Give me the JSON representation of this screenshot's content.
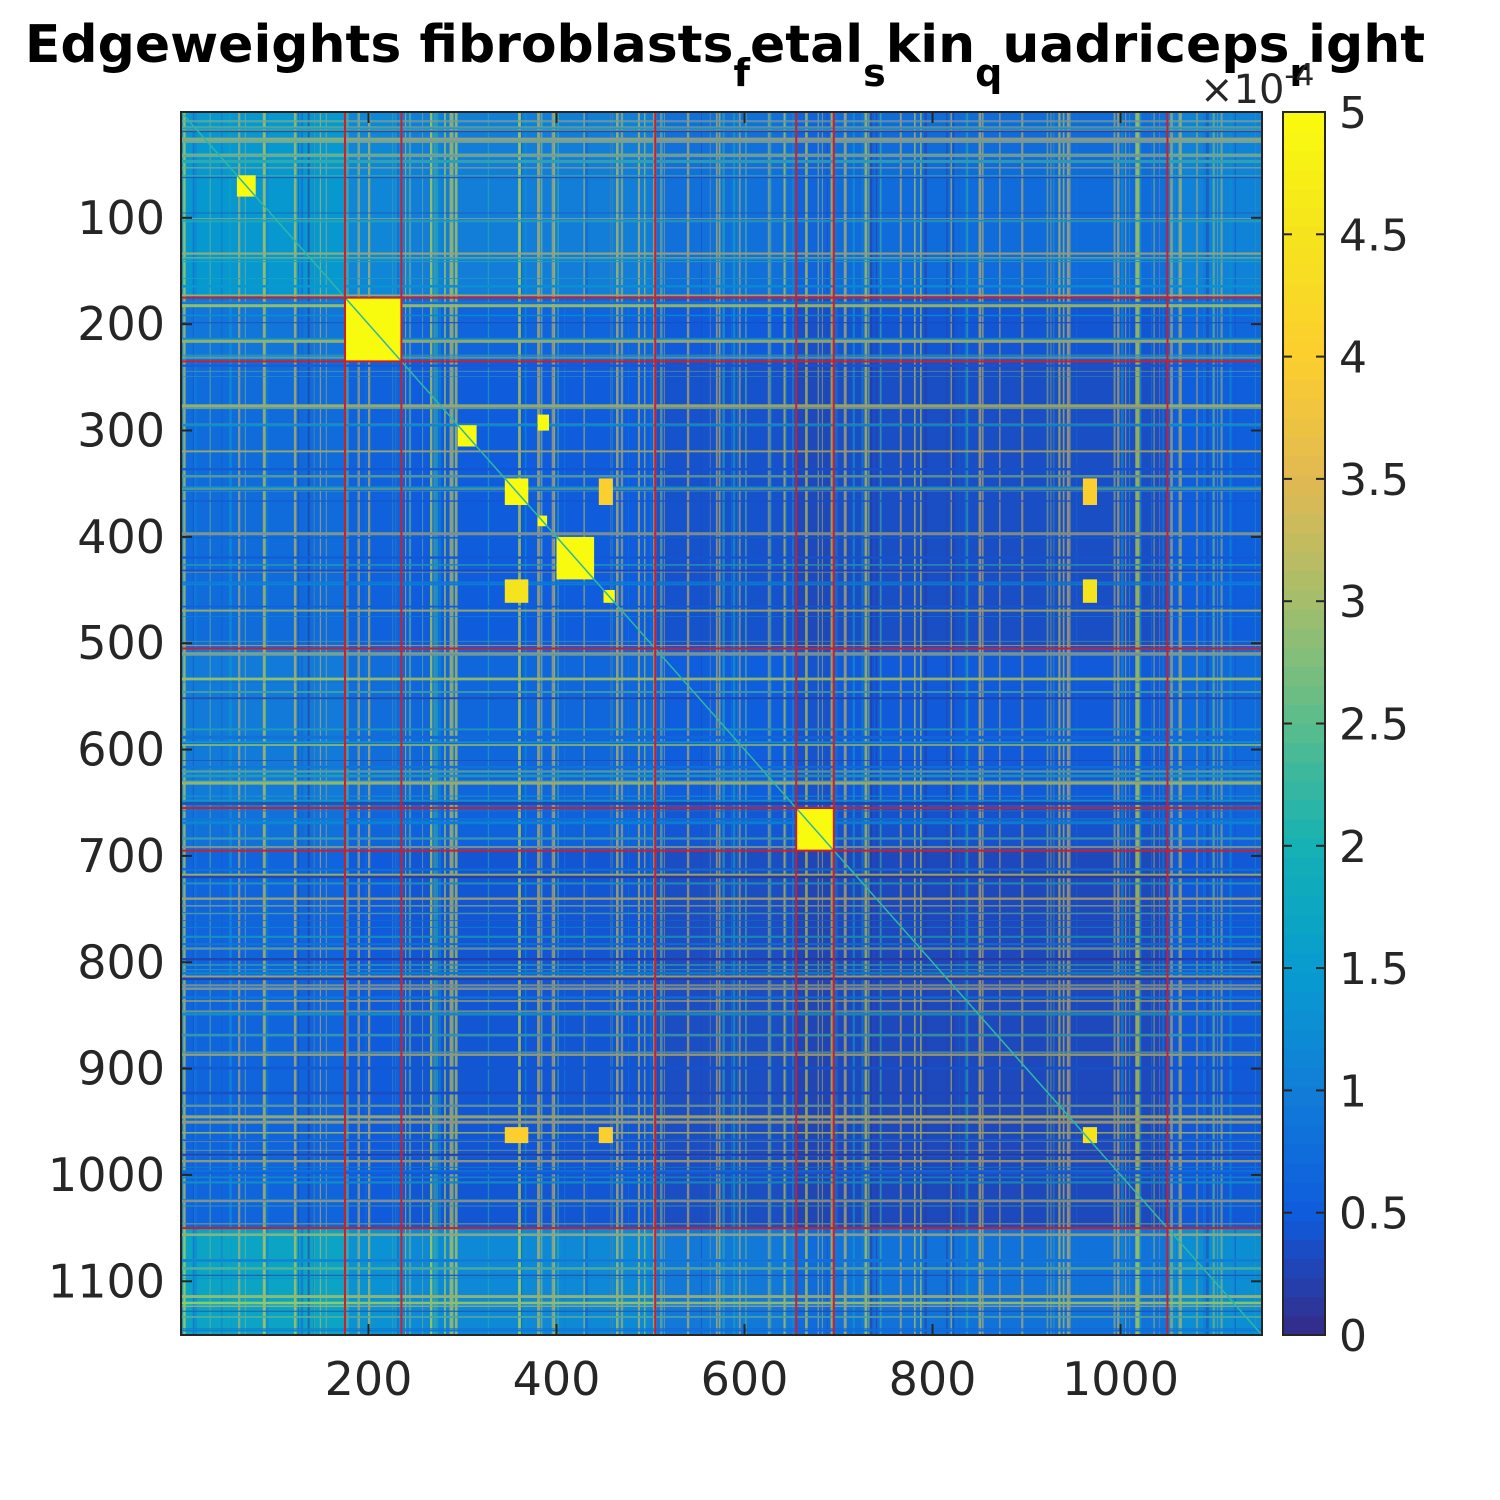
{
  "chart_data": {
    "type": "heatmap",
    "title_parts": [
      {
        "text": "Edgeweights fibroblasts",
        "sub": false
      },
      {
        "text": "f",
        "sub": true
      },
      {
        "text": "etal",
        "sub": false
      },
      {
        "text": "s",
        "sub": true
      },
      {
        "text": "kin",
        "sub": false
      },
      {
        "text": "q",
        "sub": true
      },
      {
        "text": "uadriceps",
        "sub": false
      },
      {
        "text": "r",
        "sub": true
      },
      {
        "text": "ight",
        "sub": false
      }
    ],
    "matrix_size": 1150,
    "xlim": [
      1,
      1150
    ],
    "ylim": [
      1,
      1150
    ],
    "x_ticks": [
      200,
      400,
      600,
      800,
      1000
    ],
    "y_ticks": [
      100,
      200,
      300,
      400,
      500,
      600,
      700,
      800,
      900,
      1000,
      1100
    ],
    "x_tick_labels": [
      "200",
      "400",
      "600",
      "800",
      "1000"
    ],
    "y_tick_labels": [
      "100",
      "200",
      "300",
      "400",
      "500",
      "600",
      "700",
      "800",
      "900",
      "1000",
      "1100"
    ],
    "colorbar": {
      "colormap": "parula",
      "range": [
        0,
        5
      ],
      "ticks": [
        0,
        0.5,
        1,
        1.5,
        2,
        2.5,
        3,
        3.5,
        4,
        4.5,
        5
      ],
      "tick_labels": [
        "0",
        "0.5",
        "1",
        "1.5",
        "2",
        "2.5",
        "3",
        "3.5",
        "4",
        "4.5",
        "5"
      ],
      "multiplier_prefix": "×10",
      "multiplier_exponent": "-4"
    },
    "cluster_boundaries": [
      175,
      235,
      505,
      655,
      695,
      1050
    ],
    "diagonal_blocks": [
      {
        "start": 175,
        "end": 235,
        "level": 5
      },
      {
        "start": 60,
        "end": 80,
        "level": 5
      },
      {
        "start": 295,
        "end": 315,
        "level": 5
      },
      {
        "start": 345,
        "end": 370,
        "level": 5
      },
      {
        "start": 380,
        "end": 390,
        "level": 5
      },
      {
        "start": 400,
        "end": 440,
        "level": 5
      },
      {
        "start": 450,
        "end": 462,
        "level": 5
      },
      {
        "start": 655,
        "end": 695,
        "level": 5
      }
    ],
    "off_diagonal_blocks": [
      {
        "rows": [
          345,
          370
        ],
        "cols": [
          445,
          460
        ],
        "level": 4
      },
      {
        "rows": [
          345,
          370
        ],
        "cols": [
          960,
          975
        ],
        "level": 4
      },
      {
        "rows": [
          440,
          462
        ],
        "cols": [
          345,
          370
        ],
        "level": 4.5
      },
      {
        "rows": [
          440,
          462
        ],
        "cols": [
          960,
          975
        ],
        "level": 4.5
      },
      {
        "rows": [
          955,
          970
        ],
        "cols": [
          345,
          370
        ],
        "level": 4
      },
      {
        "rows": [
          955,
          970
        ],
        "cols": [
          445,
          460
        ],
        "level": 4
      },
      {
        "rows": [
          955,
          970
        ],
        "cols": [
          960,
          975
        ],
        "level": 4.5
      },
      {
        "rows": [
          285,
          300
        ],
        "cols": [
          380,
          392
        ],
        "level": 5
      }
    ],
    "row_band_levels": [
      {
        "range": [
          1,
          175
        ],
        "level": 1.6
      },
      {
        "range": [
          175,
          235
        ],
        "level": 0.6
      },
      {
        "range": [
          235,
          505
        ],
        "level": 0.4
      },
      {
        "range": [
          505,
          655
        ],
        "level": 0.7
      },
      {
        "range": [
          655,
          695
        ],
        "level": 0.5
      },
      {
        "range": [
          695,
          1050
        ],
        "level": 0.3
      },
      {
        "range": [
          1050,
          1150
        ],
        "level": 2.2
      }
    ],
    "col_band_levels": [
      {
        "range": [
          1,
          175
        ],
        "level": 1.6
      },
      {
        "range": [
          175,
          235
        ],
        "level": 1.0
      },
      {
        "range": [
          235,
          505
        ],
        "level": 0.8
      },
      {
        "range": [
          505,
          655
        ],
        "level": 0.5
      },
      {
        "range": [
          655,
          695
        ],
        "level": 0.3
      },
      {
        "range": [
          695,
          1050
        ],
        "level": 0.4
      },
      {
        "range": [
          1050,
          1150
        ],
        "level": 0.9
      }
    ],
    "boundary_line_color": "#d01d2a",
    "axis_color": "#262626"
  }
}
